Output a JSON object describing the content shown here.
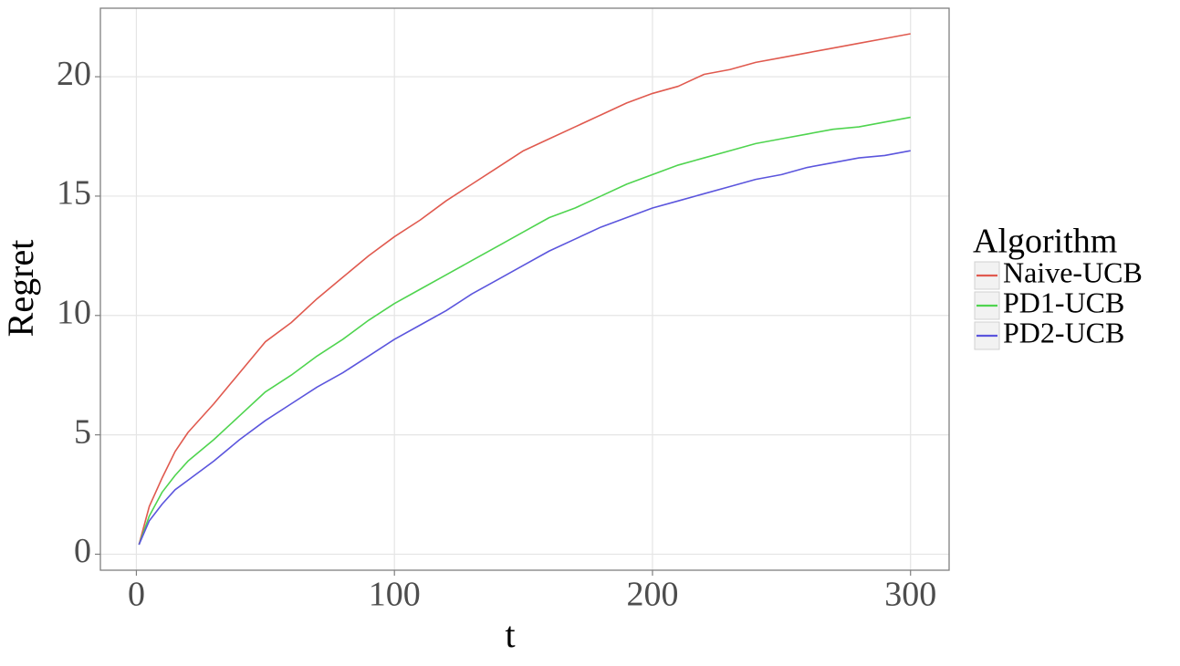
{
  "chart_data": {
    "type": "line",
    "x_label": "t",
    "y_label": "Regret",
    "legend_title": "Algorithm",
    "legend_position": "right",
    "x": [
      1,
      5,
      10,
      15,
      20,
      30,
      40,
      50,
      60,
      70,
      80,
      90,
      100,
      110,
      120,
      130,
      140,
      150,
      160,
      170,
      180,
      190,
      200,
      210,
      220,
      230,
      240,
      250,
      260,
      270,
      280,
      290,
      300
    ],
    "series": [
      {
        "name": "Naive-UCB",
        "color": "#e05a4f",
        "values": [
          0.4,
          2.0,
          3.2,
          4.3,
          5.1,
          6.3,
          7.6,
          8.9,
          9.7,
          10.7,
          11.6,
          12.5,
          13.3,
          14.0,
          14.8,
          15.5,
          16.2,
          16.9,
          17.4,
          17.9,
          18.4,
          18.9,
          19.3,
          19.6,
          20.1,
          20.3,
          20.6,
          20.8,
          21.0,
          21.2,
          21.4,
          21.6,
          21.8
        ]
      },
      {
        "name": "PD1-UCB",
        "color": "#4fd44f",
        "values": [
          0.4,
          1.6,
          2.6,
          3.3,
          3.9,
          4.8,
          5.8,
          6.8,
          7.5,
          8.3,
          9.0,
          9.8,
          10.5,
          11.1,
          11.7,
          12.3,
          12.9,
          13.5,
          14.1,
          14.5,
          15.0,
          15.5,
          15.9,
          16.3,
          16.6,
          16.9,
          17.2,
          17.4,
          17.6,
          17.8,
          17.9,
          18.1,
          18.3
        ]
      },
      {
        "name": "PD2-UCB",
        "color": "#5b55dd",
        "values": [
          0.4,
          1.4,
          2.1,
          2.7,
          3.1,
          3.9,
          4.8,
          5.6,
          6.3,
          7.0,
          7.6,
          8.3,
          9.0,
          9.6,
          10.2,
          10.9,
          11.5,
          12.1,
          12.7,
          13.2,
          13.7,
          14.1,
          14.5,
          14.8,
          15.1,
          15.4,
          15.7,
          15.9,
          16.2,
          16.4,
          16.6,
          16.7,
          16.9
        ]
      }
    ],
    "xlim": [
      -13.95,
      314.95
    ],
    "xticks": [
      0,
      100,
      200,
      300
    ],
    "ylim": [
      -0.67,
      22.87
    ],
    "yticks": [
      0,
      5,
      10,
      15,
      20
    ],
    "grid": true
  }
}
